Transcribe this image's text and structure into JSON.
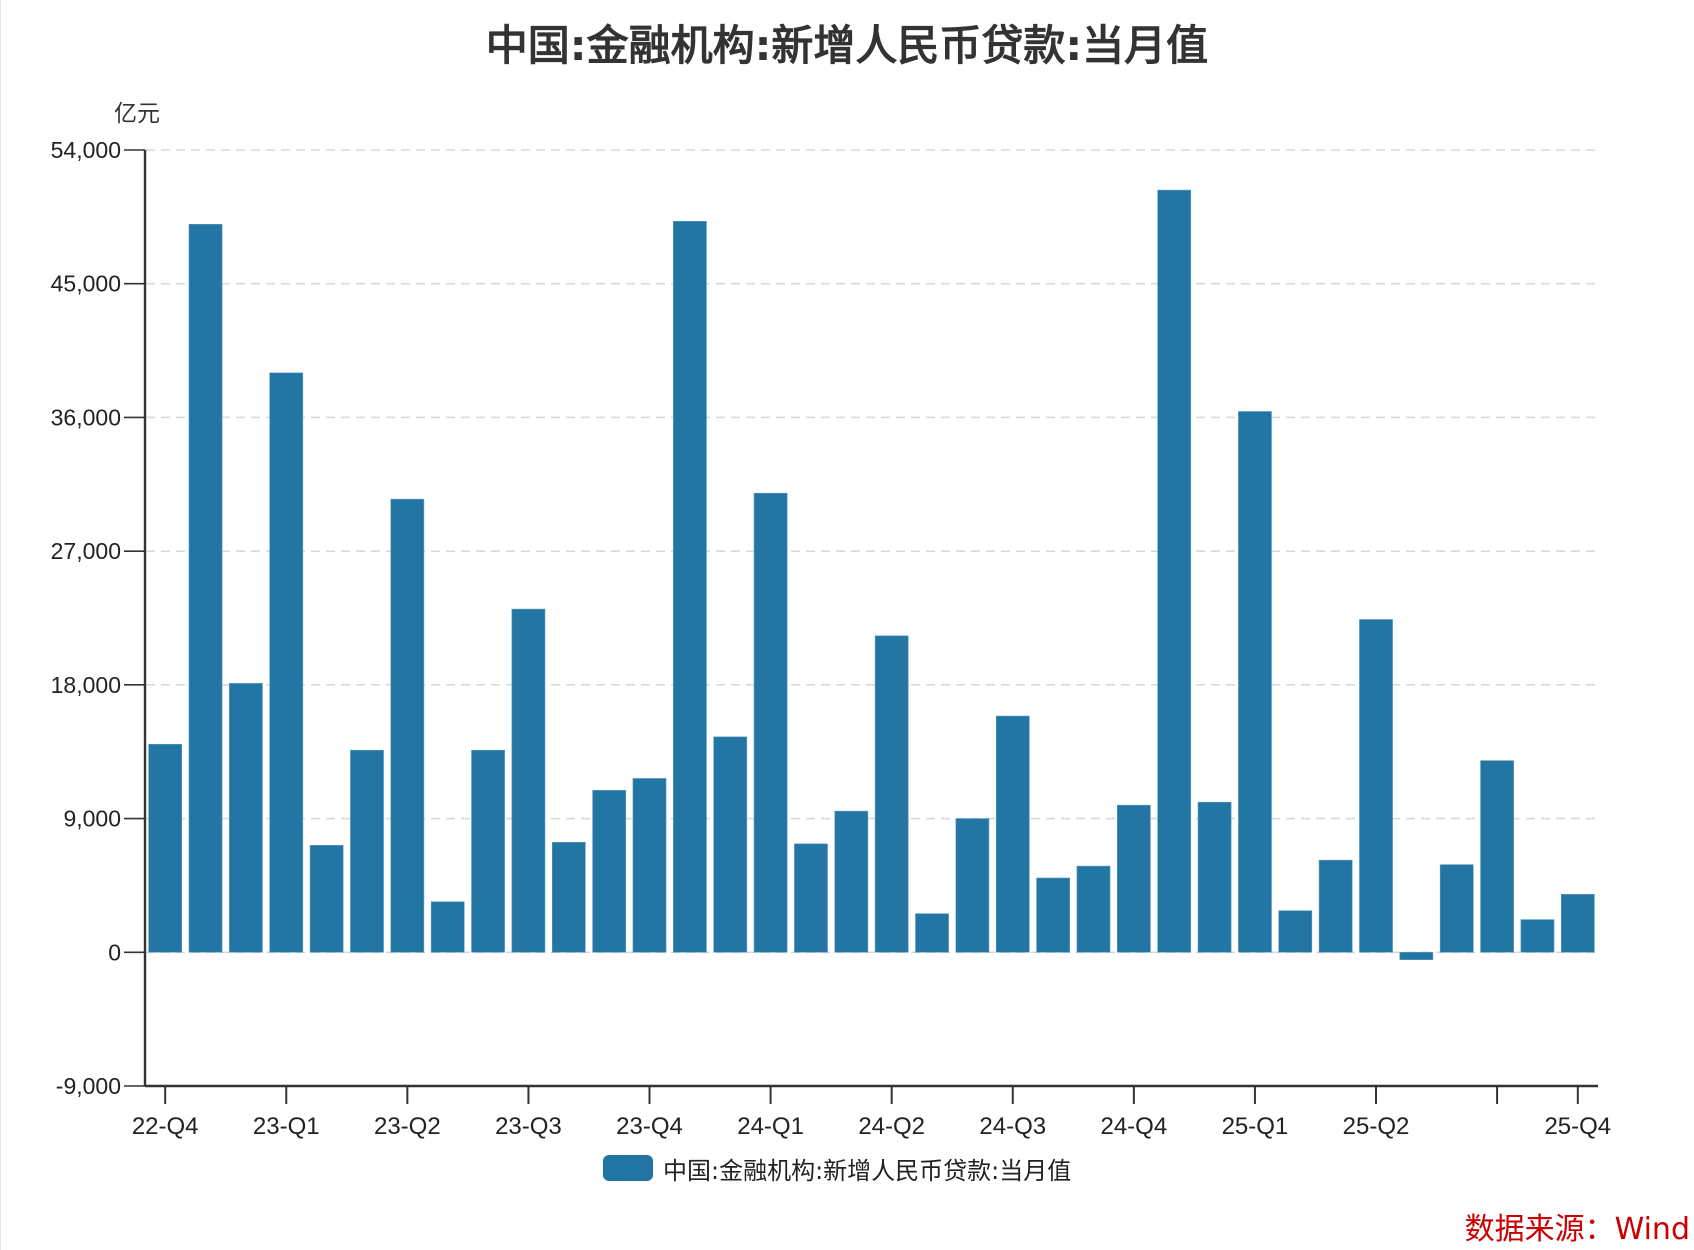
{
  "title": "中国:金融机构:新增人民币贷款:当月值",
  "y_unit": "亿元",
  "legend": {
    "label": "中国:金融机构:新增人民币贷款:当月值",
    "color": "#2376a3"
  },
  "source": "数据来源：Wind",
  "colors": {
    "bar": "#2376a3",
    "axis": "#333333",
    "grid": "#d9d9d9",
    "text": "#222222",
    "source": "#cc0000"
  },
  "chart_data": {
    "type": "bar",
    "title": "中国:金融机构:新增人民币贷款:当月值",
    "xlabel": "",
    "ylabel": "亿元",
    "ylim": [
      -9000,
      54000
    ],
    "yticks": [
      -9000,
      0,
      9000,
      18000,
      27000,
      36000,
      45000,
      54000
    ],
    "ytick_labels": [
      "-9,000",
      "0",
      "9,000",
      "18,000",
      "27,000",
      "36,000",
      "45,000",
      "54,000"
    ],
    "grid": true,
    "grid_style": "dashed-horizontal",
    "legend_position": "bottom-center",
    "x_ticks": [
      {
        "index": 0,
        "label": "22-Q4"
      },
      {
        "index": 3,
        "label": "23-Q1"
      },
      {
        "index": 6,
        "label": "23-Q2"
      },
      {
        "index": 9,
        "label": "23-Q3"
      },
      {
        "index": 12,
        "label": "23-Q4"
      },
      {
        "index": 15,
        "label": "24-Q1"
      },
      {
        "index": 18,
        "label": "24-Q2"
      },
      {
        "index": 21,
        "label": "24-Q3"
      },
      {
        "index": 24,
        "label": "24-Q4"
      },
      {
        "index": 27,
        "label": "25-Q1"
      },
      {
        "index": 30,
        "label": "25-Q2"
      },
      {
        "index": 33,
        "label": ""
      },
      {
        "index": 35,
        "label": "25-Q4"
      }
    ],
    "series": [
      {
        "name": "中国:金融机构:新增人民币贷款:当月值",
        "values": [
          14000,
          49000,
          18100,
          39000,
          7200,
          13600,
          30500,
          3400,
          13600,
          23100,
          7400,
          10900,
          11700,
          49200,
          14500,
          30900,
          7300,
          9500,
          21300,
          2600,
          9000,
          15900,
          5000,
          5800,
          9900,
          51300,
          10100,
          36400,
          2800,
          6200,
          22400,
          -500,
          5900,
          12900,
          2200,
          3900
        ]
      }
    ]
  }
}
